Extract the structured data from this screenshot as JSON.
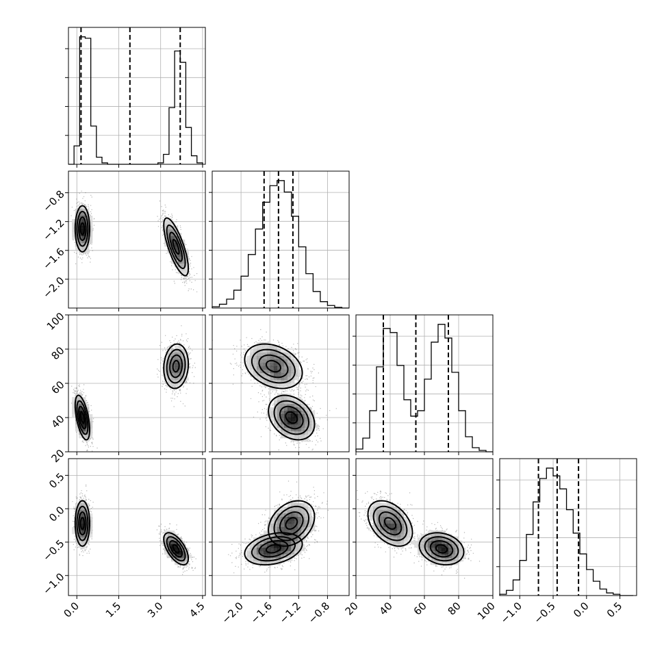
{
  "chart_data": {
    "type": "corner",
    "grid": true,
    "parameters": [
      {
        "range": [
          -0.3,
          4.6
        ],
        "ticks": [
          0.0,
          1.5,
          3.0,
          4.5
        ],
        "tick_labels": [
          "0.0",
          "1.5",
          "3.0",
          "4.5"
        ],
        "quantiles": [
          0.15,
          1.9,
          3.7
        ],
        "histogram": {
          "bins": [
            -0.3,
            -0.1,
            0.1,
            0.3,
            0.5,
            0.7,
            0.9,
            1.1,
            1.3,
            1.5,
            1.7,
            1.9,
            2.1,
            2.3,
            2.5,
            2.7,
            2.9,
            3.1,
            3.3,
            3.5,
            3.7,
            3.9,
            4.1,
            4.3,
            4.5
          ],
          "counts": [
            0,
            0.13,
            0.9,
            0.89,
            0.27,
            0.05,
            0.01,
            0,
            0,
            0,
            0,
            0,
            0,
            0,
            0,
            0,
            0.01,
            0.07,
            0.4,
            0.8,
            0.72,
            0.26,
            0.06,
            0.01
          ]
        }
      },
      {
        "range": [
          -2.4,
          -0.5
        ],
        "ticks": [
          -2.0,
          -1.6,
          -1.2,
          -0.8
        ],
        "tick_labels": [
          "−2.0",
          "−1.6",
          "−1.2",
          "−0.8"
        ],
        "quantiles": [
          -1.68,
          -1.48,
          -1.28
        ],
        "histogram": {
          "bins": [
            -2.4,
            -2.3,
            -2.2,
            -2.1,
            -2.0,
            -1.9,
            -1.8,
            -1.7,
            -1.6,
            -1.5,
            -1.4,
            -1.3,
            -1.2,
            -1.1,
            -1.0,
            -0.9,
            -0.8,
            -0.7,
            -0.6,
            -0.5
          ],
          "counts": [
            0.01,
            0.03,
            0.07,
            0.14,
            0.25,
            0.42,
            0.62,
            0.83,
            0.96,
            1.0,
            0.91,
            0.72,
            0.48,
            0.27,
            0.13,
            0.05,
            0.02,
            0.005,
            0
          ]
        }
      },
      {
        "range": [
          20,
          100
        ],
        "ticks": [
          20,
          40,
          60,
          80,
          100
        ],
        "tick_labels": [
          "20",
          "40",
          "60",
          "80",
          "100"
        ],
        "quantiles": [
          36,
          55,
          74
        ],
        "histogram": {
          "bins": [
            20,
            24,
            28,
            32,
            36,
            40,
            44,
            48,
            52,
            56,
            60,
            64,
            68,
            72,
            76,
            80,
            84,
            88,
            92,
            96,
            100
          ],
          "counts": [
            0.02,
            0.1,
            0.3,
            0.62,
            0.9,
            0.87,
            0.63,
            0.38,
            0.26,
            0.3,
            0.53,
            0.8,
            0.93,
            0.83,
            0.58,
            0.3,
            0.11,
            0.03,
            0.01,
            0
          ]
        }
      },
      {
        "range": [
          -1.3,
          0.75
        ],
        "ticks": [
          -1.0,
          -0.5,
          0.0,
          0.5
        ],
        "tick_labels": [
          "−1.0",
          "−0.5",
          "0.0",
          "0.5"
        ],
        "quantiles": [
          -0.72,
          -0.44,
          -0.12
        ],
        "histogram": {
          "bins": [
            -1.3,
            -1.2,
            -1.1,
            -1.0,
            -0.9,
            -0.8,
            -0.7,
            -0.6,
            -0.5,
            -0.4,
            -0.3,
            -0.2,
            -0.1,
            0.0,
            0.1,
            0.2,
            0.3,
            0.4,
            0.5,
            0.6,
            0.7
          ],
          "counts": [
            0.01,
            0.04,
            0.12,
            0.27,
            0.47,
            0.72,
            0.9,
            0.98,
            0.92,
            0.82,
            0.66,
            0.48,
            0.32,
            0.2,
            0.11,
            0.05,
            0.02,
            0.01,
            0,
            0
          ]
        }
      }
    ],
    "modes": [
      {
        "weight": 0.5,
        "mean": [
          0.2,
          -1.3,
          40,
          -0.22
        ],
        "sd": [
          0.13,
          0.16,
          6.5,
          0.17
        ],
        "corr": [
          [
            0,
            1,
            0
          ],
          [
            0,
            2,
            -0.55
          ],
          [
            0,
            3,
            0
          ],
          [
            1,
            2,
            -0.3
          ],
          [
            1,
            3,
            0.3
          ],
          [
            2,
            3,
            -0.4
          ]
        ]
      },
      {
        "weight": 0.5,
        "mean": [
          3.55,
          -1.55,
          70,
          -0.6
        ],
        "sd": [
          0.22,
          0.2,
          6.5,
          0.12
        ],
        "corr": [
          [
            0,
            1,
            -0.75
          ],
          [
            0,
            2,
            0.1
          ],
          [
            0,
            3,
            -0.6
          ],
          [
            1,
            2,
            -0.3
          ],
          [
            1,
            3,
            0.3
          ],
          [
            2,
            3,
            -0.2
          ]
        ]
      }
    ]
  }
}
